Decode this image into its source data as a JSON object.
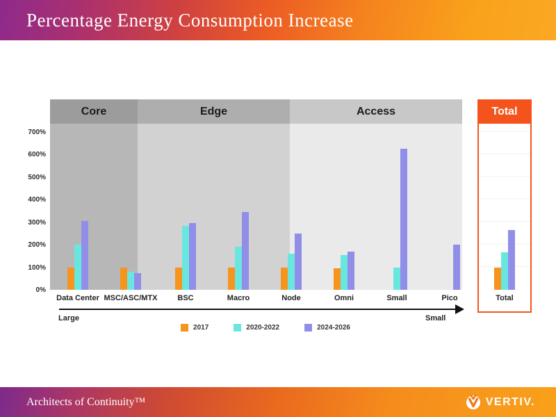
{
  "header": {
    "title": "Percentage Energy Consumption Increase"
  },
  "sections": {
    "core": "Core",
    "edge": "Edge",
    "access": "Access",
    "total": "Total"
  },
  "axis": {
    "large_label": "Large",
    "small_label": "Small"
  },
  "total_group_label": "Total",
  "colors": {
    "series_2017": "#f7941d",
    "series_2020_2022": "#69e7df",
    "series_2024_2026": "#908ee8",
    "total_accent": "#f4541c"
  },
  "chart_data": {
    "type": "bar",
    "title": "Percentage Energy Consumption Increase",
    "categories": [
      "Data Center",
      "MSC/ASC/MTX",
      "BSC",
      "Macro",
      "Node",
      "Omni",
      "Small",
      "Pico",
      "Total"
    ],
    "category_sections": [
      "Core",
      "Core",
      "Edge",
      "Edge",
      "Edge",
      "Access",
      "Access",
      "Access",
      "Total"
    ],
    "series": [
      {
        "name": "2017",
        "color": "#f7941d",
        "values": [
          100,
          100,
          100,
          100,
          100,
          95,
          0,
          0,
          100
        ]
      },
      {
        "name": "2020-2022",
        "color": "#69e7df",
        "values": [
          200,
          80,
          285,
          190,
          160,
          155,
          100,
          0,
          165
        ]
      },
      {
        "name": "2024-2026",
        "color": "#908ee8",
        "values": [
          305,
          75,
          295,
          345,
          250,
          170,
          625,
          200,
          265
        ]
      }
    ],
    "ylabel": "",
    "xlabel": "",
    "ylim": [
      0,
      700
    ],
    "y_ticks": [
      "0%",
      "100%",
      "200%",
      "300%",
      "400%",
      "500%",
      "600%",
      "700%"
    ],
    "legend_position": "bottom",
    "grid": true,
    "size_axis": {
      "left": "Large",
      "right": "Small"
    }
  },
  "footer": {
    "tagline": "Architects of Continuity™",
    "brand": "VERTIV."
  }
}
